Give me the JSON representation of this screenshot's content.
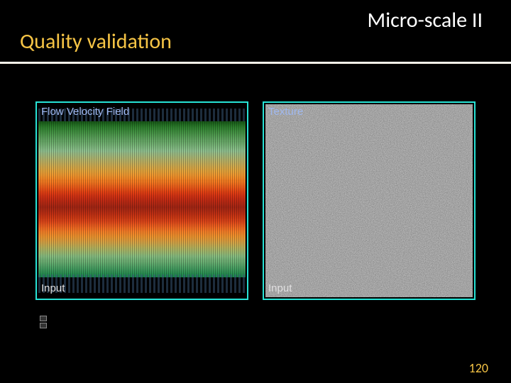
{
  "header": {
    "title_right": "Micro-scale II",
    "title_left": "Quality validation",
    "title_right_color": "#ffffff",
    "title_left_color": "#f6c445",
    "divider_color": "#faf5ea"
  },
  "panels": {
    "left": {
      "title": "Flow Velocity Field",
      "bottom_label": "Input",
      "border_color": "#27e3d6",
      "title_color": "#9fb8f0",
      "flow_lines": {
        "count": 110,
        "colors_top_to_bottom": [
          "#1a5c1a",
          "#1f661f",
          "#247024",
          "#2a7a2a",
          "#308030",
          "#368636",
          "#3c8c3c",
          "#429042",
          "#489448",
          "#4e984e",
          "#549c54",
          "#5aa05a",
          "#60a460",
          "#66a866",
          "#6cac6c",
          "#72b072",
          "#78b478",
          "#7eb87e",
          "#84bc84",
          "#8ac08a",
          "#90c090",
          "#96be8a",
          "#9cbc84",
          "#a2ba7e",
          "#a8b878",
          "#aeb672",
          "#b4b46c",
          "#bab266",
          "#c0b060",
          "#c6ae5a",
          "#ccac54",
          "#d2aa4e",
          "#d8a848",
          "#dea642",
          "#e4a43c",
          "#e8a038",
          "#ec9c34",
          "#f09830",
          "#f2922c",
          "#f48c28",
          "#f48424",
          "#f47c22",
          "#f27420",
          "#f06c1e",
          "#ee641c",
          "#ec5c1a",
          "#ea5418",
          "#e84c16",
          "#e44414",
          "#e03e14",
          "#da3814",
          "#d43414",
          "#ce3014",
          "#c82e14",
          "#c22c14",
          "#bc2a14",
          "#b62914",
          "#b02814",
          "#aa2714",
          "#a42614",
          "#a82814",
          "#ae2a14",
          "#b42c14",
          "#ba2e14",
          "#c03014",
          "#c63414",
          "#cc3814",
          "#d23c16",
          "#d84218",
          "#de481a",
          "#e4501c",
          "#e8581e",
          "#ec6020",
          "#f06822",
          "#f27024",
          "#f47826",
          "#f48028",
          "#f2862a",
          "#f08c2c",
          "#ee922e",
          "#ea9632",
          "#e49a38",
          "#de9e3e",
          "#d8a244",
          "#d0a64a",
          "#c8aa50",
          "#c0ae56",
          "#b8b25c",
          "#b0b462",
          "#a8b668",
          "#a0b86e",
          "#98ba74",
          "#90bc7a",
          "#88bc80",
          "#80ba7e",
          "#78b67a",
          "#70b276",
          "#68ae72",
          "#60aa6e",
          "#58a66a",
          "#50a266",
          "#489e62",
          "#409a5e",
          "#38965a",
          "#309256",
          "#288e52",
          "#208a4e",
          "#1a864a",
          "#168046",
          "#127a42"
        ]
      }
    },
    "right": {
      "title": "Texture",
      "bottom_label": "Input",
      "border_color": "#27e3d6",
      "title_color": "#9fb8f0",
      "noise": {
        "base_frequency": 0.9,
        "seed": 7,
        "bg": "#7a7a7a"
      }
    }
  },
  "page_number": "120",
  "page_number_color": "#f6c445",
  "background_color": "#000000"
}
